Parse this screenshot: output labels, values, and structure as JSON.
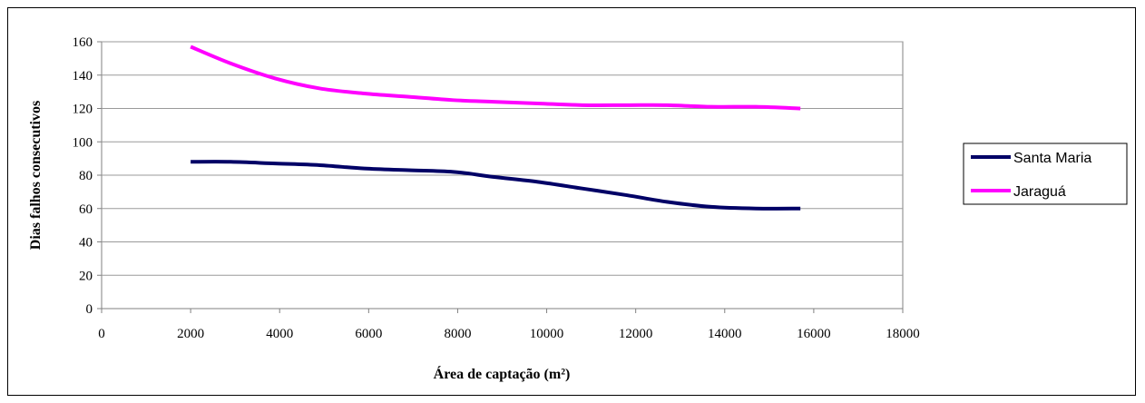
{
  "chart_data": {
    "type": "line",
    "title": "",
    "xlabel": "Área de captação (m²)",
    "ylabel": "Dias falhos consecutivos",
    "xlim": [
      0,
      18000
    ],
    "ylim": [
      0,
      160
    ],
    "xticks": [
      0,
      2000,
      4000,
      6000,
      8000,
      10000,
      12000,
      14000,
      16000,
      18000
    ],
    "yticks": [
      0,
      20,
      40,
      60,
      80,
      100,
      120,
      140,
      160
    ],
    "grid": "horizontal",
    "legend_position": "right",
    "series": [
      {
        "name": "Santa Maria",
        "color": "#000066",
        "x": [
          2000,
          2900,
          3900,
          4900,
          5900,
          6900,
          7900,
          8800,
          9800,
          10800,
          11800,
          12700,
          13700,
          14700,
          15700
        ],
        "y": [
          88,
          88,
          87,
          86,
          84,
          83,
          82,
          79,
          76,
          72,
          68,
          64,
          61,
          60,
          60
        ]
      },
      {
        "name": "Jaraguá",
        "color": "#ff00ff",
        "x": [
          2000,
          2900,
          3900,
          4900,
          5900,
          6900,
          7900,
          8800,
          9800,
          10800,
          11800,
          12700,
          13700,
          14700,
          15700
        ],
        "y": [
          157,
          147,
          138,
          132,
          129,
          127,
          125,
          124,
          123,
          122,
          122,
          122,
          121,
          121,
          120
        ]
      }
    ]
  }
}
